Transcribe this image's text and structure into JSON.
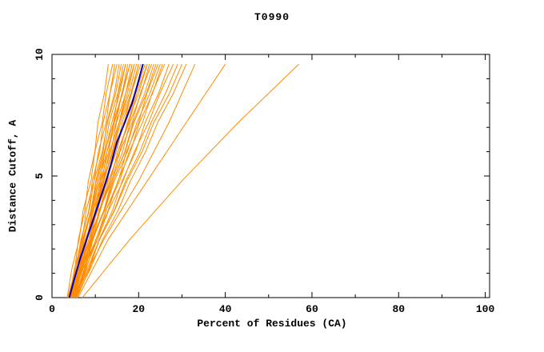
{
  "chart_data": {
    "type": "line",
    "title": "T0990",
    "xlabel": "Percent of Residues (CA)",
    "ylabel": "Distance Cutoff, A",
    "xlim": [
      0,
      101
    ],
    "ylim": [
      0,
      10
    ],
    "x_ticks": [
      0,
      20,
      40,
      60,
      80,
      100
    ],
    "y_ticks": [
      0,
      5,
      10
    ],
    "x_minor_step": 10,
    "y_minor_step": 1,
    "grid": false,
    "legend": "none",
    "colors": {
      "models": "#ff8c00",
      "highlight": "#0000bb",
      "axis": "#000000"
    },
    "y_levels": [
      0,
      1.2,
      2.4,
      3.6,
      4.8,
      6.0,
      7.2,
      8.4,
      9.6
    ],
    "series": {
      "models": [
        [
          4,
          5.3,
          6.1,
          7.6,
          8.4,
          9.9,
          10.6,
          12.1,
          13
        ],
        [
          3.5,
          4.6,
          6.3,
          7.2,
          9.0,
          9.9,
          11.6,
          12.5,
          14
        ],
        [
          4.5,
          5.9,
          6.8,
          8.5,
          9.3,
          11,
          11.8,
          13.4,
          14.5
        ],
        [
          4,
          5.2,
          7,
          7.9,
          9.7,
          10.7,
          12.5,
          13.4,
          15
        ],
        [
          5,
          6.5,
          7.4,
          9.1,
          10.1,
          11.8,
          12.7,
          14.4,
          15.5
        ],
        [
          3.8,
          5.5,
          6.7,
          8.6,
          9.7,
          11.6,
          12.8,
          14.7,
          16
        ],
        [
          4.2,
          5.9,
          7.1,
          9,
          10.2,
          12.1,
          13.2,
          15.2,
          16.5
        ],
        [
          4.8,
          6.1,
          8.1,
          9.2,
          11.1,
          12.2,
          14.2,
          15.3,
          17
        ],
        [
          4,
          5.8,
          7.4,
          9,
          10.5,
          12.3,
          13.8,
          15.6,
          17
        ],
        [
          5.2,
          6.9,
          8.1,
          10,
          11.2,
          13.1,
          14.2,
          16.2,
          17.5
        ],
        [
          4.5,
          6,
          8.1,
          9.4,
          11.5,
          12.7,
          14.8,
          16.1,
          18
        ],
        [
          3.6,
          5.5,
          7.2,
          9.1,
          10.8,
          12.7,
          14.4,
          16.3,
          18
        ],
        [
          4.9,
          6.8,
          8.1,
          10.2,
          11.5,
          13.6,
          14.9,
          17,
          18.5
        ],
        [
          4.2,
          5.9,
          8.1,
          9.6,
          11.8,
          13.3,
          15.5,
          17,
          19
        ],
        [
          5,
          6.9,
          8.5,
          10.4,
          12,
          13.9,
          15.5,
          17.4,
          19
        ],
        [
          4.4,
          6.5,
          8,
          10.3,
          11.8,
          14,
          15.5,
          17.8,
          19.5
        ],
        [
          3.9,
          6.1,
          7.7,
          10.1,
          11.8,
          14.2,
          15.8,
          18.2,
          20
        ],
        [
          5.5,
          7.5,
          8.9,
          11.1,
          12.6,
          14.8,
          16.2,
          18.4,
          20
        ],
        [
          4.6,
          6.4,
          8.8,
          10.4,
          12.8,
          14.3,
          16.7,
          18.3,
          20.5
        ],
        [
          4,
          6.3,
          8.1,
          10.6,
          12.3,
          14.8,
          16.6,
          19.1,
          21
        ],
        [
          5.1,
          7,
          9.4,
          11.1,
          13.5,
          15.2,
          17.6,
          19.3,
          21.5
        ],
        [
          4.3,
          6.7,
          8.5,
          11.2,
          13,
          15.6,
          17.4,
          20,
          22
        ],
        [
          4.8,
          6.8,
          9.1,
          10.9,
          13.4,
          15.2,
          17.8,
          19.6,
          22
        ],
        [
          5.4,
          7.7,
          9.5,
          12,
          13.8,
          16.3,
          18,
          20.6,
          22.5
        ],
        [
          4.1,
          6.3,
          9,
          11,
          13.8,
          15.7,
          18.5,
          20.4,
          23
        ],
        [
          5,
          7.5,
          9.4,
          12.1,
          14.1,
          16.8,
          18.7,
          21.4,
          23.5
        ],
        [
          4.5,
          7.1,
          9.2,
          12,
          14.1,
          16.9,
          18.9,
          21.8,
          24
        ],
        [
          5.6,
          7.8,
          10.5,
          12.5,
          15.3,
          17.2,
          20,
          21.9,
          24.5
        ],
        [
          4.2,
          7,
          9.2,
          12.2,
          14.4,
          17.4,
          19.6,
          22.6,
          25
        ],
        [
          5.2,
          7.9,
          10.1,
          13,
          15.2,
          18.1,
          20.2,
          23.2,
          25.5
        ],
        [
          4.7,
          7.2,
          10.2,
          12.5,
          15.6,
          17.8,
          20.9,
          23.1,
          26
        ],
        [
          5.8,
          8.7,
          10.9,
          14,
          16.2,
          19.3,
          21.5,
          24.6,
          27
        ],
        [
          4.4,
          7.2,
          10.5,
          13.1,
          16.4,
          19,
          22.3,
          24.9,
          28
        ],
        [
          5.3,
          8.5,
          11,
          14.4,
          17,
          20.3,
          22.9,
          26.2,
          29
        ],
        [
          4.9,
          8.2,
          11,
          14.5,
          17.3,
          20.8,
          23.5,
          27.1,
          30
        ],
        [
          5.5,
          8.9,
          11.7,
          15.3,
          18.1,
          21.6,
          24.4,
          28,
          31
        ],
        [
          5,
          8.5,
          12,
          16,
          20,
          23.5,
          27,
          30,
          33
        ],
        [
          6,
          9.5,
          13,
          17.5,
          22,
          26.5,
          31,
          35.5,
          40
        ],
        [
          7,
          12.5,
          18,
          24,
          30,
          36.5,
          43,
          50,
          57
        ]
      ],
      "highlight": {
        "y": [
          0,
          0.8,
          1.6,
          2.4,
          3.2,
          4.0,
          4.8,
          5.6,
          6.4,
          7.2,
          8.0,
          8.8,
          9.6
        ],
        "x": [
          4,
          5.2,
          6.5,
          8,
          9.5,
          11,
          12.5,
          13.8,
          15,
          16.8,
          18.5,
          19.8,
          21
        ]
      }
    }
  }
}
